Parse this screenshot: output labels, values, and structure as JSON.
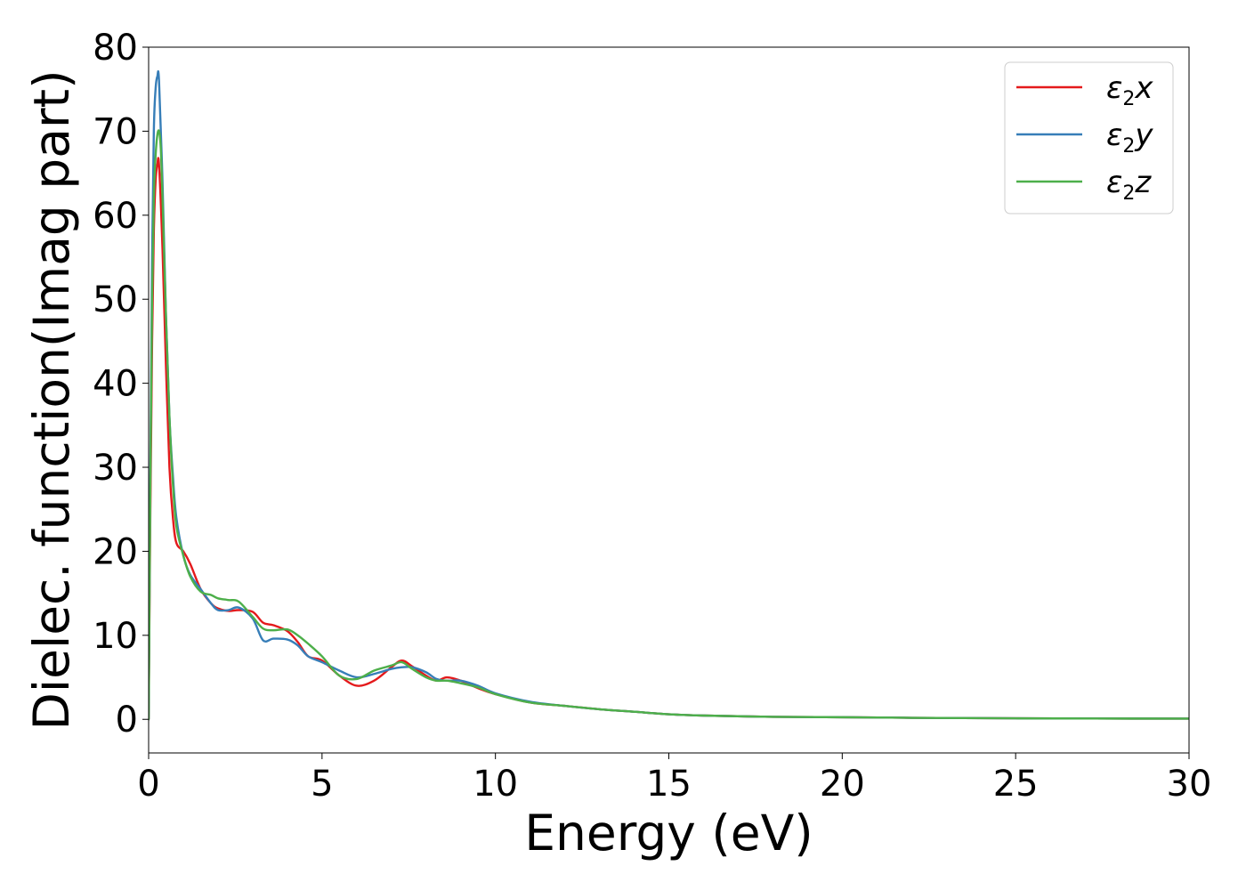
{
  "chart_data": {
    "type": "line",
    "xlabel": "Energy (eV)",
    "ylabel": "Dielec. function(Imag part)",
    "xlim": [
      0,
      30
    ],
    "ylim": [
      -4,
      80
    ],
    "xticks": [
      "0",
      "5",
      "10",
      "15",
      "20",
      "25",
      "30"
    ],
    "yticks": [
      "0",
      "10",
      "20",
      "30",
      "40",
      "50",
      "60",
      "70",
      "80"
    ],
    "grid": false,
    "legend_position": "top-right",
    "series": [
      {
        "name": "ε₂x",
        "legend_base": "ε",
        "legend_sub": "2",
        "legend_var": "x",
        "color": "#e41a1c",
        "x": [
          0,
          0.05,
          0.1,
          0.15,
          0.2,
          0.25,
          0.3,
          0.4,
          0.5,
          0.6,
          0.7,
          0.8,
          1.0,
          1.2,
          1.5,
          1.8,
          2.0,
          2.3,
          2.6,
          3.0,
          3.3,
          3.6,
          4.0,
          4.3,
          4.6,
          5.0,
          5.5,
          6.0,
          6.5,
          7.0,
          7.3,
          7.6,
          8.0,
          8.3,
          8.6,
          9.0,
          9.5,
          10.0,
          11.0,
          12.0,
          13.0,
          14.0,
          15.0,
          16.0,
          18.0,
          20.0,
          22.0,
          25.0,
          30.0
        ],
        "values": [
          0,
          25,
          45,
          58,
          64,
          66,
          66,
          56,
          42,
          30,
          24,
          21,
          20,
          18.5,
          15.5,
          13.8,
          13.2,
          12.9,
          13.0,
          12.8,
          11.5,
          11.2,
          10.5,
          9.2,
          7.5,
          7.0,
          5.2,
          4.0,
          4.6,
          6.2,
          7.0,
          6.3,
          5.2,
          4.6,
          5.0,
          4.6,
          3.7,
          3.0,
          2.0,
          1.6,
          1.2,
          0.9,
          0.6,
          0.45,
          0.3,
          0.25,
          0.18,
          0.12,
          0.08
        ]
      },
      {
        "name": "ε₂y",
        "legend_base": "ε",
        "legend_sub": "2",
        "legend_var": "y",
        "color": "#377eb8",
        "x": [
          0,
          0.05,
          0.1,
          0.15,
          0.2,
          0.25,
          0.3,
          0.4,
          0.5,
          0.6,
          0.7,
          0.8,
          1.0,
          1.2,
          1.5,
          1.8,
          2.0,
          2.3,
          2.6,
          3.0,
          3.3,
          3.6,
          4.0,
          4.3,
          4.6,
          5.0,
          5.5,
          6.0,
          6.5,
          7.0,
          7.3,
          7.6,
          8.0,
          8.3,
          8.6,
          9.0,
          9.5,
          10.0,
          11.0,
          12.0,
          13.0,
          14.0,
          15.0,
          16.0,
          18.0,
          20.0,
          22.0,
          25.0,
          30.0
        ],
        "values": [
          0,
          30,
          55,
          70,
          75,
          76.5,
          76,
          64,
          48,
          36,
          29,
          24,
          19.5,
          17.2,
          15.5,
          13.8,
          13.0,
          13.0,
          13.3,
          12.0,
          9.4,
          9.6,
          9.5,
          8.8,
          7.5,
          6.8,
          5.8,
          5.0,
          5.4,
          6.0,
          6.2,
          6.2,
          5.6,
          4.8,
          4.6,
          4.6,
          4.0,
          3.1,
          2.1,
          1.6,
          1.2,
          0.9,
          0.6,
          0.45,
          0.3,
          0.25,
          0.18,
          0.12,
          0.08
        ]
      },
      {
        "name": "ε₂z",
        "legend_base": "ε",
        "legend_sub": "2",
        "legend_var": "z",
        "color": "#4daf4a",
        "x": [
          0,
          0.05,
          0.1,
          0.15,
          0.2,
          0.25,
          0.3,
          0.35,
          0.4,
          0.5,
          0.6,
          0.7,
          0.8,
          1.0,
          1.2,
          1.5,
          1.8,
          2.0,
          2.3,
          2.6,
          3.0,
          3.3,
          3.6,
          4.0,
          4.3,
          4.6,
          5.0,
          5.5,
          6.0,
          6.5,
          7.0,
          7.3,
          7.6,
          8.0,
          8.3,
          8.6,
          9.0,
          9.5,
          10.0,
          11.0,
          12.0,
          13.0,
          14.0,
          15.0,
          16.0,
          18.0,
          20.0,
          22.0,
          25.0,
          30.0
        ],
        "values": [
          0,
          28,
          50,
          62,
          67,
          69.5,
          70,
          68,
          62,
          48,
          36,
          28,
          23,
          19.5,
          17.0,
          15.2,
          14.8,
          14.4,
          14.2,
          14.0,
          12.2,
          10.8,
          10.6,
          10.7,
          10.0,
          9.0,
          7.5,
          5.2,
          4.8,
          5.8,
          6.4,
          6.8,
          6.0,
          5.0,
          4.6,
          4.6,
          4.3,
          3.8,
          3.0,
          2.0,
          1.6,
          1.2,
          0.9,
          0.6,
          0.45,
          0.3,
          0.25,
          0.18,
          0.12,
          0.08
        ]
      }
    ]
  }
}
